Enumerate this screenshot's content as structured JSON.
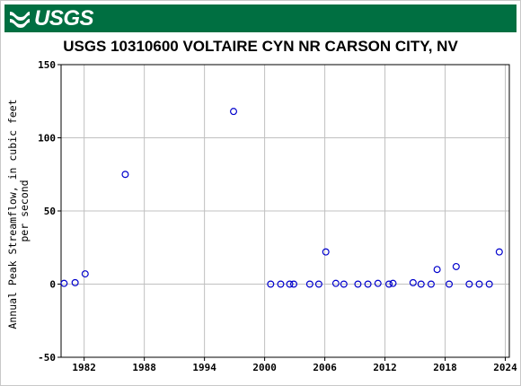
{
  "header": {
    "logo_text": "USGS",
    "logo_icon": "usgs-wave-icon",
    "bar_color": "#006f41"
  },
  "chart_data": {
    "type": "scatter",
    "title": "USGS 10310600 VOLTAIRE CYN NR CARSON CITY, NV",
    "ylabel": "Annual Peak Streamflow, in cubic feet per second",
    "ylabel_lines": [
      "Annual Peak Streamflow, in cubic feet",
      "per second"
    ],
    "xlabel": "",
    "xlim": [
      1979.7,
      2024.4
    ],
    "ylim": [
      -50,
      150
    ],
    "x_ticks": [
      1982,
      1988,
      1994,
      2000,
      2006,
      2012,
      2018,
      2024
    ],
    "y_ticks": [
      -50,
      0,
      50,
      100,
      150
    ],
    "grid": true,
    "marker": "open-circle",
    "marker_color": "#0000cc",
    "series": [
      {
        "x": [
          1980.0,
          1981.1,
          1982.1,
          1986.1,
          1996.9,
          2000.6,
          2001.6,
          2002.5,
          2002.9,
          2004.5,
          2005.4,
          2006.1,
          2007.1,
          2007.9,
          2009.3,
          2010.3,
          2011.3,
          2012.4,
          2012.8,
          2014.8,
          2015.6,
          2016.6,
          2017.2,
          2018.4,
          2019.1,
          2020.4,
          2021.4,
          2022.4,
          2023.4
        ],
        "y": [
          0.5,
          1,
          7,
          75,
          118,
          0,
          0,
          0,
          0,
          0,
          0,
          22,
          0.5,
          0,
          0,
          0,
          0.5,
          0,
          0.5,
          1,
          0,
          0,
          10,
          0,
          12,
          0,
          0,
          0,
          22
        ]
      }
    ]
  }
}
